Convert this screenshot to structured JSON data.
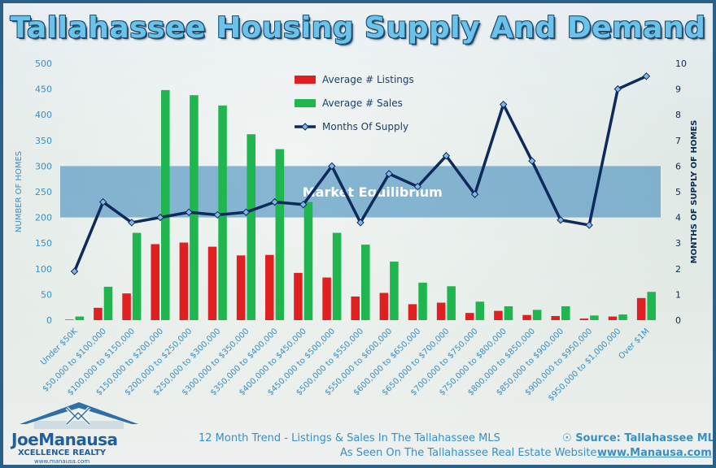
{
  "title": "Tallahassee Housing Supply And Demand",
  "colors": {
    "listings": "#e02020",
    "sales": "#1fb54f",
    "supply_line": "#0e2a5c",
    "supply_marker": "#7fb8e6",
    "equilibrium_band": "#2f82b8",
    "left_axis_text": "#3a8fc4",
    "right_axis_text": "#0c2a57"
  },
  "chart_data": {
    "type": "bar",
    "title": "Tallahassee Housing Supply And Demand",
    "categories": [
      "Under $50K",
      "$50,000 to $100,000",
      "$100,000 to $150,000",
      "$150,000 to $200,000",
      "$200,000 to $250,000",
      "$250,000 to $300,000",
      "$300,000 to $350,000",
      "$350,000 to $400,000",
      "$400,000 to $450,000",
      "$450,000 to $500,000",
      "$500,000 to $550,000",
      "$550,000 to $600,000",
      "$600,000 to $650,000",
      "$650,000 to $700,000",
      "$700,000 to $750,000",
      "$750,000 to $800,000",
      "$800,000 to $850,000",
      "$850,000 to $900,000",
      "$900,000 to $950,000",
      "$950,000 to $1,000,000",
      "Over $1M"
    ],
    "series": [
      {
        "name": "Average # Listings",
        "type": "bar",
        "axis": "left",
        "values": [
          1,
          24,
          52,
          148,
          151,
          143,
          126,
          127,
          92,
          83,
          46,
          53,
          31,
          34,
          14,
          18,
          10,
          8,
          3,
          7,
          43
        ]
      },
      {
        "name": "Average # Sales",
        "type": "bar",
        "axis": "left",
        "values": [
          7,
          65,
          170,
          448,
          438,
          418,
          362,
          333,
          230,
          170,
          147,
          114,
          73,
          66,
          36,
          27,
          20,
          27,
          9,
          11,
          55
        ]
      },
      {
        "name": "Months Of Supply",
        "type": "line",
        "axis": "right",
        "values": [
          1.9,
          4.6,
          3.8,
          4.0,
          4.2,
          4.1,
          4.2,
          4.6,
          4.5,
          6.0,
          3.8,
          5.7,
          5.2,
          6.4,
          4.9,
          8.4,
          6.2,
          3.9,
          3.7,
          9.0,
          9.5
        ]
      }
    ],
    "ylabel": "NUMBER OF HOMES",
    "ylim": [
      0,
      500
    ],
    "yticks": [
      "0",
      "50",
      "100",
      "150",
      "200",
      "250",
      "300",
      "350",
      "400",
      "450",
      "500"
    ],
    "y2label": "MONTHS OF SUPPLY OF HOMES",
    "y2lim": [
      0,
      10
    ],
    "y2ticks": [
      "0",
      "1",
      "2",
      "3",
      "4",
      "5",
      "6",
      "7",
      "8",
      "9",
      "10"
    ],
    "band": {
      "label": "Market Equilibrium",
      "from": 4,
      "to": 6,
      "axis": "right"
    },
    "legend_position": "top-center",
    "grid": false
  },
  "logo": {
    "name": "JoeManausa",
    "sub": "XCELLENCE REALTY",
    "url": "www.manausa.com"
  },
  "footer": {
    "trend": "12 Month Trend - Listings & Sales In The Tallahassee MLS",
    "source": "Source: Tallahassee MLS",
    "seen_on": "As Seen On The Tallahassee Real Estate Website",
    "site_url": "www.Manausa.com"
  }
}
